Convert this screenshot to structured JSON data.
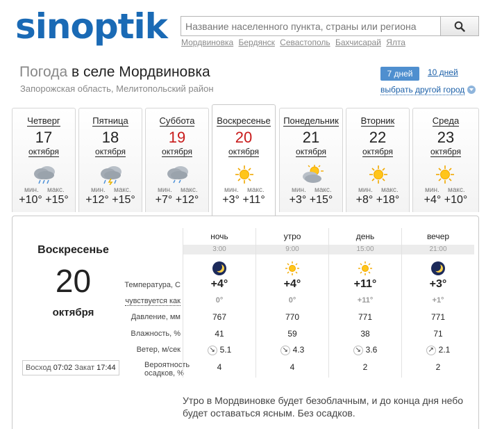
{
  "header": {
    "logo_text": "sinoptik",
    "search_placeholder": "Название населенного пункта, страны или региона",
    "recent_cities": [
      "Мордвиновка",
      "Бердянск",
      "Севастополь",
      "Бахчисарай",
      "Ялта"
    ]
  },
  "location": {
    "title_prefix": "Погода",
    "title_place": "в селе Мордвиновка",
    "region": "Запорожская область, Мелитопольский район"
  },
  "range_tabs": {
    "seven": "7 дней",
    "ten": "10 дней",
    "other_city": "выбрать другой город"
  },
  "labels": {
    "min": "мин.",
    "max": "макс."
  },
  "days": [
    {
      "name": "Четверг",
      "num": "17",
      "month": "октября",
      "icon": "cloud-rain-icon",
      "min": "+10°",
      "max": "+15°",
      "red": false
    },
    {
      "name": "Пятница",
      "num": "18",
      "month": "октября",
      "icon": "cloud-storm-icon",
      "min": "+12°",
      "max": "+15°",
      "red": false
    },
    {
      "name": "Суббота",
      "num": "19",
      "month": "октября",
      "icon": "cloud-rain-icon",
      "min": "+7°",
      "max": "+12°",
      "red": true
    },
    {
      "name": "Воскресенье",
      "num": "20",
      "month": "октября",
      "icon": "sun-icon",
      "min": "+3°",
      "max": "+11°",
      "red": true
    },
    {
      "name": "Понедельник",
      "num": "21",
      "month": "октября",
      "icon": "sun-cloud-icon",
      "min": "+3°",
      "max": "+15°",
      "red": false
    },
    {
      "name": "Вторник",
      "num": "22",
      "month": "октября",
      "icon": "sun-icon",
      "min": "+8°",
      "max": "+18°",
      "red": false
    },
    {
      "name": "Среда",
      "num": "23",
      "month": "октября",
      "icon": "sun-icon",
      "min": "+4°",
      "max": "+10°",
      "red": false
    }
  ],
  "detail": {
    "day_name": "Воскресенье",
    "day_num": "20",
    "month": "октября",
    "sunrise_label": "Восход",
    "sunrise": "07:02",
    "sunset_label": "Закат",
    "sunset": "17:44",
    "row_labels": {
      "temperature": "Температура, С",
      "feels": "чувствуется как",
      "pressure": "Давление, мм",
      "humidity": "Влажность, %",
      "wind": "Ветер, м/сек",
      "probability_1": "Вероятность",
      "probability_2": "осадков, %"
    },
    "periods": [
      {
        "part": "ночь",
        "time": "3:00",
        "icon": "moon-icon",
        "temp": "+4°",
        "feels": "0°",
        "pressure": "767",
        "humidity": "41",
        "wind_dir": "↘",
        "wind": "5.1",
        "prob": "4"
      },
      {
        "part": "утро",
        "time": "9:00",
        "icon": "sun-icon",
        "temp": "+4°",
        "feels": "0°",
        "pressure": "770",
        "humidity": "59",
        "wind_dir": "↘",
        "wind": "4.3",
        "prob": "4"
      },
      {
        "part": "день",
        "time": "15:00",
        "icon": "sun-icon",
        "temp": "+11°",
        "feels": "+11°",
        "pressure": "771",
        "humidity": "38",
        "wind_dir": "↘",
        "wind": "3.6",
        "prob": "2"
      },
      {
        "part": "вечер",
        "time": "21:00",
        "icon": "moon-icon",
        "temp": "+3°",
        "feels": "+1°",
        "pressure": "771",
        "humidity": "71",
        "wind_dir": "↗",
        "wind": "2.1",
        "prob": "2"
      }
    ],
    "description": "Утро в Мордвиновке будет безоблачным, и до конца дня небо будет оставаться ясным. Без осадков."
  }
}
